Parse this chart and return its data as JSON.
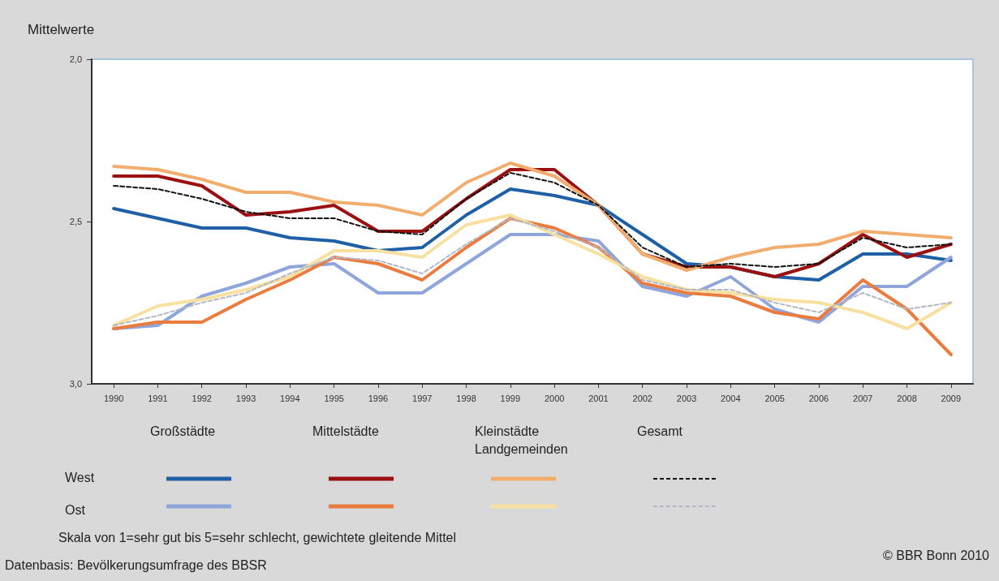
{
  "chart_data": {
    "type": "line",
    "ylabel": "Mittelwerte",
    "categories": [
      "1990",
      "1991",
      "1992",
      "1993",
      "1994",
      "1995",
      "1996",
      "1997",
      "1998",
      "1999",
      "2000",
      "2001",
      "2002",
      "2003",
      "2004",
      "2005",
      "2006",
      "2007",
      "2008",
      "2009"
    ],
    "ylim": [
      3.0,
      2.0
    ],
    "yticks": [
      {
        "value": 2,
        "label": "2,0"
      },
      {
        "value": 2.5,
        "label": "2,5"
      },
      {
        "value": 3,
        "label": "3,0"
      }
    ],
    "grid": false,
    "marker": "none",
    "series": [
      {
        "color": "#1f5fa6",
        "values": [
          2.46,
          2.49,
          2.52,
          2.52,
          2.55,
          2.56,
          2.59,
          2.58,
          2.48,
          2.4,
          2.42,
          2.45,
          2.54,
          2.63,
          2.64,
          2.67,
          2.68,
          2.6,
          2.6,
          2.62
        ]
      },
      {
        "color": "#9b1010",
        "values": [
          2.36,
          2.36,
          2.39,
          2.48,
          2.47,
          2.45,
          2.53,
          2.53,
          2.43,
          2.34,
          2.34,
          2.45,
          2.6,
          2.64,
          2.64,
          2.67,
          2.63,
          2.54,
          2.61,
          2.57
        ]
      },
      {
        "color": "#f2ad6e",
        "values": [
          2.33,
          2.34,
          2.37,
          2.41,
          2.41,
          2.44,
          2.45,
          2.48,
          2.38,
          2.32,
          2.36,
          2.45,
          2.6,
          2.65,
          2.61,
          2.58,
          2.57,
          2.53,
          2.54,
          2.55
        ]
      },
      {
        "color": "#111111",
        "line_style": "dashed",
        "values": [
          2.39,
          2.4,
          2.43,
          2.47,
          2.49,
          2.49,
          2.53,
          2.54,
          2.43,
          2.35,
          2.38,
          2.45,
          2.58,
          2.64,
          2.63,
          2.64,
          2.63,
          2.55,
          2.58,
          2.57
        ]
      },
      {
        "color": "#8ea6dc",
        "values": [
          2.83,
          2.82,
          2.73,
          2.69,
          2.64,
          2.63,
          2.72,
          2.72,
          2.63,
          2.54,
          2.54,
          2.56,
          2.7,
          2.73,
          2.67,
          2.77,
          2.81,
          2.7,
          2.7,
          2.61
        ]
      },
      {
        "color": "#ea7c40",
        "values": [
          2.83,
          2.81,
          2.81,
          2.74,
          2.68,
          2.61,
          2.63,
          2.68,
          2.58,
          2.49,
          2.52,
          2.58,
          2.69,
          2.72,
          2.73,
          2.78,
          2.8,
          2.68,
          2.77,
          2.91
        ]
      },
      {
        "color": "#f7e0a0",
        "values": [
          2.82,
          2.76,
          2.74,
          2.71,
          2.67,
          2.59,
          2.59,
          2.61,
          2.51,
          2.48,
          2.54,
          2.6,
          2.67,
          2.71,
          2.72,
          2.74,
          2.75,
          2.78,
          2.83,
          2.75
        ]
      },
      {
        "color": "#b4b8c4",
        "line_style": "dashed",
        "values": [
          2.82,
          2.79,
          2.75,
          2.72,
          2.66,
          2.61,
          2.62,
          2.66,
          2.57,
          2.49,
          2.53,
          2.58,
          2.68,
          2.71,
          2.71,
          2.75,
          2.78,
          2.72,
          2.77,
          2.75
        ]
      }
    ],
    "annotations": [
      "Großstädte",
      "Mittelstädte",
      "Kleinstädte Landgemeinden",
      "Gesamt",
      "West",
      "Ost",
      "Skala von 1=sehr gut bis 5=sehr schlecht, gewichtete gleitende Mittel",
      "Datenbasis: Bevölkerungsumfrage des BBSR",
      "© BBR Bonn 2010"
    ]
  }
}
